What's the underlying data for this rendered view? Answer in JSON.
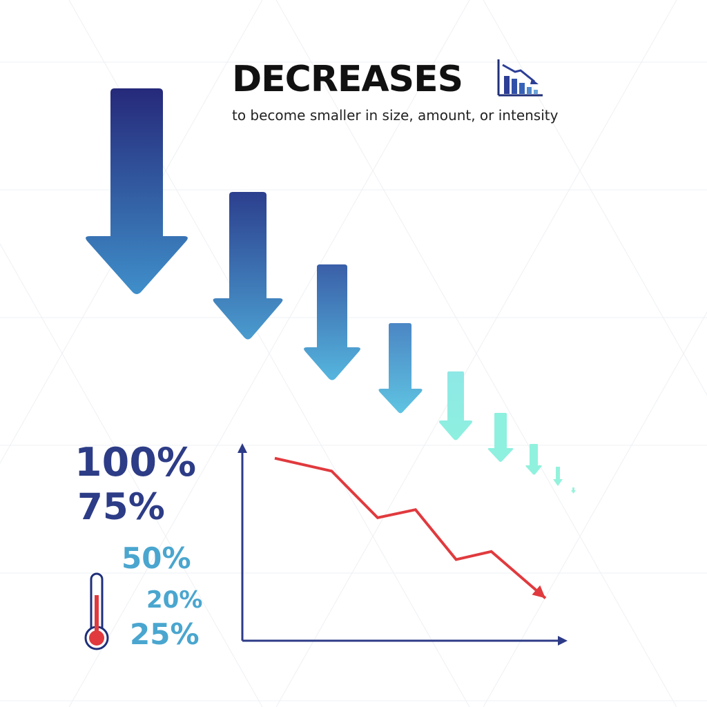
{
  "header": {
    "title": "DECREASES",
    "subtitle": "to become smaller in size, amount, or intensity",
    "icon": "decreasing-bar-chart-icon"
  },
  "percentages": [
    "100%",
    "75%",
    "50%",
    "20%",
    "25%"
  ],
  "thermometer_icon": "thermometer-icon",
  "arrows": {
    "count": 10,
    "gradient_start": "#25297a",
    "gradient_end": "#80f2e0"
  },
  "colors": {
    "title": "#111111",
    "percent_dark": "#2d3c86",
    "percent_light": "#4aa6cf",
    "trend_line": "#e03a3e",
    "axis": "#2d3a87"
  },
  "chart_data": {
    "type": "line",
    "title": "",
    "xlabel": "",
    "ylabel": "",
    "series": [
      {
        "values": [
          92,
          84,
          55,
          60,
          29,
          34,
          5
        ]
      }
    ],
    "ylim": [
      0,
      100
    ],
    "grid": false,
    "axis_arrows": true,
    "trend": "decreasing"
  }
}
